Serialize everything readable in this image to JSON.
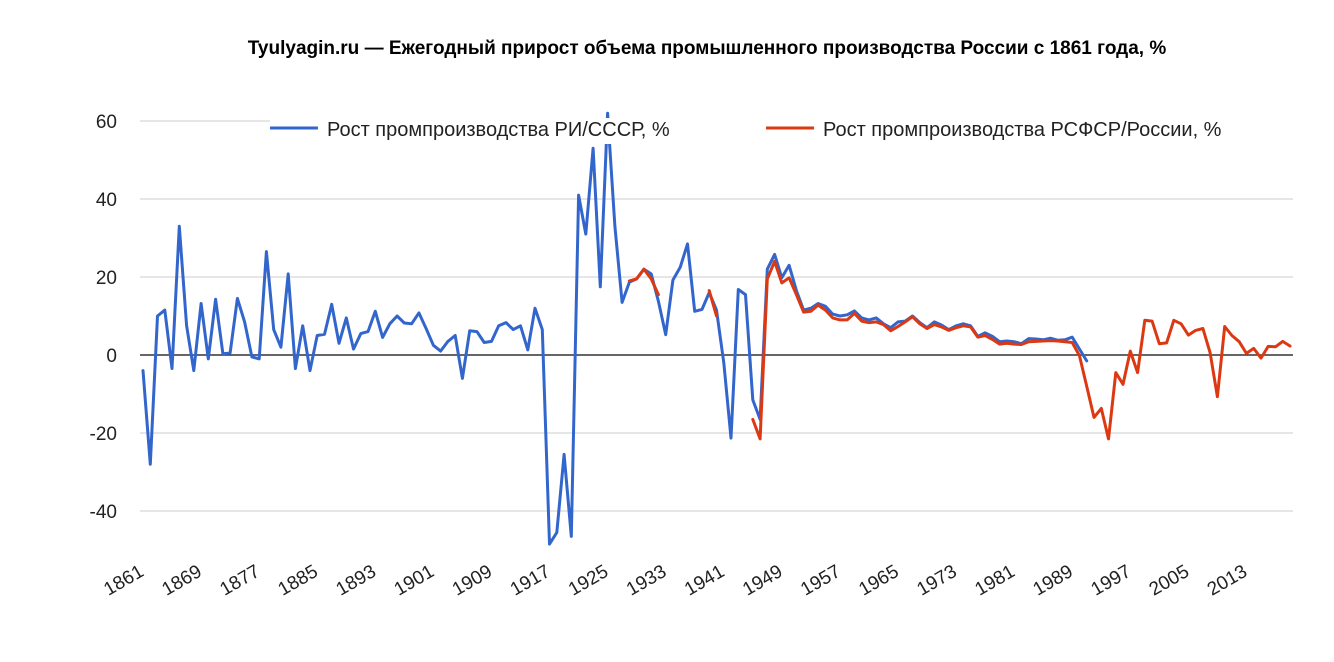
{
  "chart_data": {
    "type": "line",
    "title": "Tyulyagin.ru — Ежегодный прирост объема промышленного производства России с 1861 года, %",
    "xlabel": "",
    "ylabel": "",
    "ylim": [
      -50,
      60
    ],
    "yticks": [
      60,
      40,
      20,
      0,
      -20,
      -40
    ],
    "xticks": [
      1861,
      1869,
      1877,
      1885,
      1893,
      1901,
      1909,
      1917,
      1925,
      1933,
      1941,
      1949,
      1957,
      1965,
      1973,
      1981,
      1989,
      1997,
      2005,
      2013
    ],
    "grid": true,
    "legend_position": "top",
    "series": [
      {
        "name": "Рост промпроизводства РИ/СССР, %",
        "color": "#3366cc",
        "points": [
          [
            1861,
            -4
          ],
          [
            1862,
            -28
          ],
          [
            1863,
            10
          ],
          [
            1864,
            11.5
          ],
          [
            1865,
            -3.5
          ],
          [
            1866,
            33
          ],
          [
            1867,
            7.5
          ],
          [
            1868,
            -4
          ],
          [
            1869,
            13.2
          ],
          [
            1870,
            -1
          ],
          [
            1871,
            14.3
          ],
          [
            1872,
            0.3
          ],
          [
            1873,
            0.5
          ],
          [
            1874,
            14.5
          ],
          [
            1875,
            8.5
          ],
          [
            1876,
            -0.5
          ],
          [
            1877,
            -1
          ],
          [
            1878,
            26.5
          ],
          [
            1879,
            6.5
          ],
          [
            1880,
            2
          ],
          [
            1881,
            20.8
          ],
          [
            1882,
            -3.5
          ],
          [
            1883,
            7.5
          ],
          [
            1884,
            -4
          ],
          [
            1885,
            5
          ],
          [
            1886,
            5.3
          ],
          [
            1887,
            13
          ],
          [
            1888,
            3
          ],
          [
            1889,
            9.5
          ],
          [
            1890,
            1.5
          ],
          [
            1891,
            5.5
          ],
          [
            1892,
            6
          ],
          [
            1893,
            11.2
          ],
          [
            1894,
            4.5
          ],
          [
            1895,
            8
          ],
          [
            1896,
            10
          ],
          [
            1897,
            8.2
          ],
          [
            1898,
            8
          ],
          [
            1899,
            10.8
          ],
          [
            1900,
            6.8
          ],
          [
            1901,
            2.5
          ],
          [
            1902,
            1
          ],
          [
            1903,
            3.5
          ],
          [
            1904,
            5
          ],
          [
            1905,
            -6
          ],
          [
            1906,
            6.2
          ],
          [
            1907,
            6
          ],
          [
            1908,
            3.2
          ],
          [
            1909,
            3.5
          ],
          [
            1910,
            7.5
          ],
          [
            1911,
            8.3
          ],
          [
            1912,
            6.5
          ],
          [
            1913,
            7.5
          ],
          [
            1914,
            1.3
          ],
          [
            1915,
            12
          ],
          [
            1916,
            6.5
          ],
          [
            1917,
            -48.5
          ],
          [
            1918,
            -45.5
          ],
          [
            1919,
            -25.5
          ],
          [
            1920,
            -46.5
          ],
          [
            1921,
            41
          ],
          [
            1922,
            31
          ],
          [
            1923,
            53
          ],
          [
            1924,
            17.5
          ],
          [
            1925,
            62
          ],
          [
            1926,
            33
          ],
          [
            1927,
            13.5
          ],
          [
            1928,
            18.7
          ],
          [
            1929,
            19.5
          ],
          [
            1930,
            22
          ],
          [
            1931,
            20.8
          ],
          [
            1932,
            13.8
          ],
          [
            1933,
            5.2
          ],
          [
            1934,
            19.2
          ],
          [
            1935,
            22.5
          ],
          [
            1936,
            28.5
          ],
          [
            1937,
            11.2
          ],
          [
            1938,
            11.7
          ],
          [
            1939,
            16
          ],
          [
            1940,
            11.5
          ],
          [
            1941,
            -2
          ],
          [
            1942,
            -21.3
          ],
          [
            1943,
            16.8
          ],
          [
            1944,
            15.5
          ],
          [
            1945,
            -11.5
          ],
          [
            1946,
            -16.5
          ],
          [
            1947,
            22
          ],
          [
            1948,
            25.8
          ],
          [
            1949,
            19.8
          ],
          [
            1950,
            23
          ],
          [
            1951,
            16.5
          ],
          [
            1952,
            11.5
          ],
          [
            1953,
            12
          ],
          [
            1954,
            13.2
          ],
          [
            1955,
            12.5
          ],
          [
            1956,
            10.5
          ],
          [
            1957,
            10
          ],
          [
            1958,
            10.3
          ],
          [
            1959,
            11.3
          ],
          [
            1960,
            9.5
          ],
          [
            1961,
            9
          ],
          [
            1962,
            9.5
          ],
          [
            1963,
            8
          ],
          [
            1964,
            7
          ],
          [
            1965,
            8.5
          ],
          [
            1966,
            8.7
          ],
          [
            1967,
            10
          ],
          [
            1968,
            8.3
          ],
          [
            1969,
            7
          ],
          [
            1970,
            8.5
          ],
          [
            1971,
            7.7
          ],
          [
            1972,
            6.5
          ],
          [
            1973,
            7.5
          ],
          [
            1974,
            8
          ],
          [
            1975,
            7.5
          ],
          [
            1976,
            4.8
          ],
          [
            1977,
            5.7
          ],
          [
            1978,
            4.8
          ],
          [
            1979,
            3.4
          ],
          [
            1980,
            3.6
          ],
          [
            1981,
            3.4
          ],
          [
            1982,
            2.9
          ],
          [
            1983,
            4.2
          ],
          [
            1984,
            4.1
          ],
          [
            1985,
            3.9
          ],
          [
            1986,
            4.3
          ],
          [
            1987,
            3.8
          ],
          [
            1988,
            3.9
          ],
          [
            1989,
            4.6
          ],
          [
            1990,
            1.5
          ],
          [
            1991,
            -1.5
          ]
        ]
      },
      {
        "name": "Рост промпроизводства РСФСР/России, %",
        "color": "#dc3912",
        "points": [
          [
            1928,
            19
          ],
          [
            1929,
            19.5
          ],
          [
            1930,
            22
          ],
          [
            1931,
            19.5
          ],
          [
            1932,
            15.5
          ],
          [
            1939,
            16.5
          ],
          [
            1940,
            10
          ],
          [
            1945,
            -16.5
          ],
          [
            1946,
            -21.5
          ],
          [
            1947,
            19.5
          ],
          [
            1948,
            24
          ],
          [
            1949,
            18.5
          ],
          [
            1950,
            19.8
          ],
          [
            1951,
            15.5
          ],
          [
            1952,
            11
          ],
          [
            1953,
            11.2
          ],
          [
            1954,
            12.8
          ],
          [
            1955,
            11.5
          ],
          [
            1956,
            9.5
          ],
          [
            1957,
            9
          ],
          [
            1958,
            9
          ],
          [
            1959,
            10.7
          ],
          [
            1960,
            8.7
          ],
          [
            1961,
            8.3
          ],
          [
            1962,
            8.5
          ],
          [
            1963,
            7.8
          ],
          [
            1964,
            6.2
          ],
          [
            1965,
            7.3
          ],
          [
            1966,
            8.5
          ],
          [
            1967,
            9.8
          ],
          [
            1968,
            8
          ],
          [
            1969,
            6.8
          ],
          [
            1970,
            7.8
          ],
          [
            1971,
            7.2
          ],
          [
            1972,
            6.3
          ],
          [
            1973,
            7
          ],
          [
            1974,
            7.5
          ],
          [
            1975,
            7.2
          ],
          [
            1976,
            4.6
          ],
          [
            1977,
            5
          ],
          [
            1978,
            4
          ],
          [
            1979,
            2.8
          ],
          [
            1980,
            3
          ],
          [
            1981,
            2.8
          ],
          [
            1982,
            2.7
          ],
          [
            1983,
            3.4
          ],
          [
            1984,
            3.5
          ],
          [
            1985,
            3.6
          ],
          [
            1986,
            3.7
          ],
          [
            1987,
            3.6
          ],
          [
            1988,
            3.4
          ],
          [
            1989,
            3.2
          ],
          [
            1990,
            -0.2
          ],
          [
            1991,
            -8
          ],
          [
            1992,
            -16
          ],
          [
            1993,
            -13.7
          ],
          [
            1994,
            -21.5
          ],
          [
            1995,
            -4.5
          ],
          [
            1996,
            -7.5
          ],
          [
            1997,
            1
          ],
          [
            1998,
            -4.5
          ],
          [
            1999,
            8.9
          ],
          [
            2000,
            8.7
          ],
          [
            2001,
            2.9
          ],
          [
            2002,
            3.1
          ],
          [
            2003,
            8.9
          ],
          [
            2004,
            8
          ],
          [
            2005,
            5.1
          ],
          [
            2006,
            6.3
          ],
          [
            2007,
            6.8
          ],
          [
            2008,
            0.6
          ],
          [
            2009,
            -10.7
          ],
          [
            2010,
            7.3
          ],
          [
            2011,
            5
          ],
          [
            2012,
            3.4
          ],
          [
            2013,
            0.4
          ],
          [
            2014,
            1.7
          ],
          [
            2015,
            -0.8
          ],
          [
            2016,
            2.2
          ],
          [
            2017,
            2.1
          ],
          [
            2018,
            3.5
          ],
          [
            2019,
            2.3
          ]
        ]
      }
    ]
  }
}
